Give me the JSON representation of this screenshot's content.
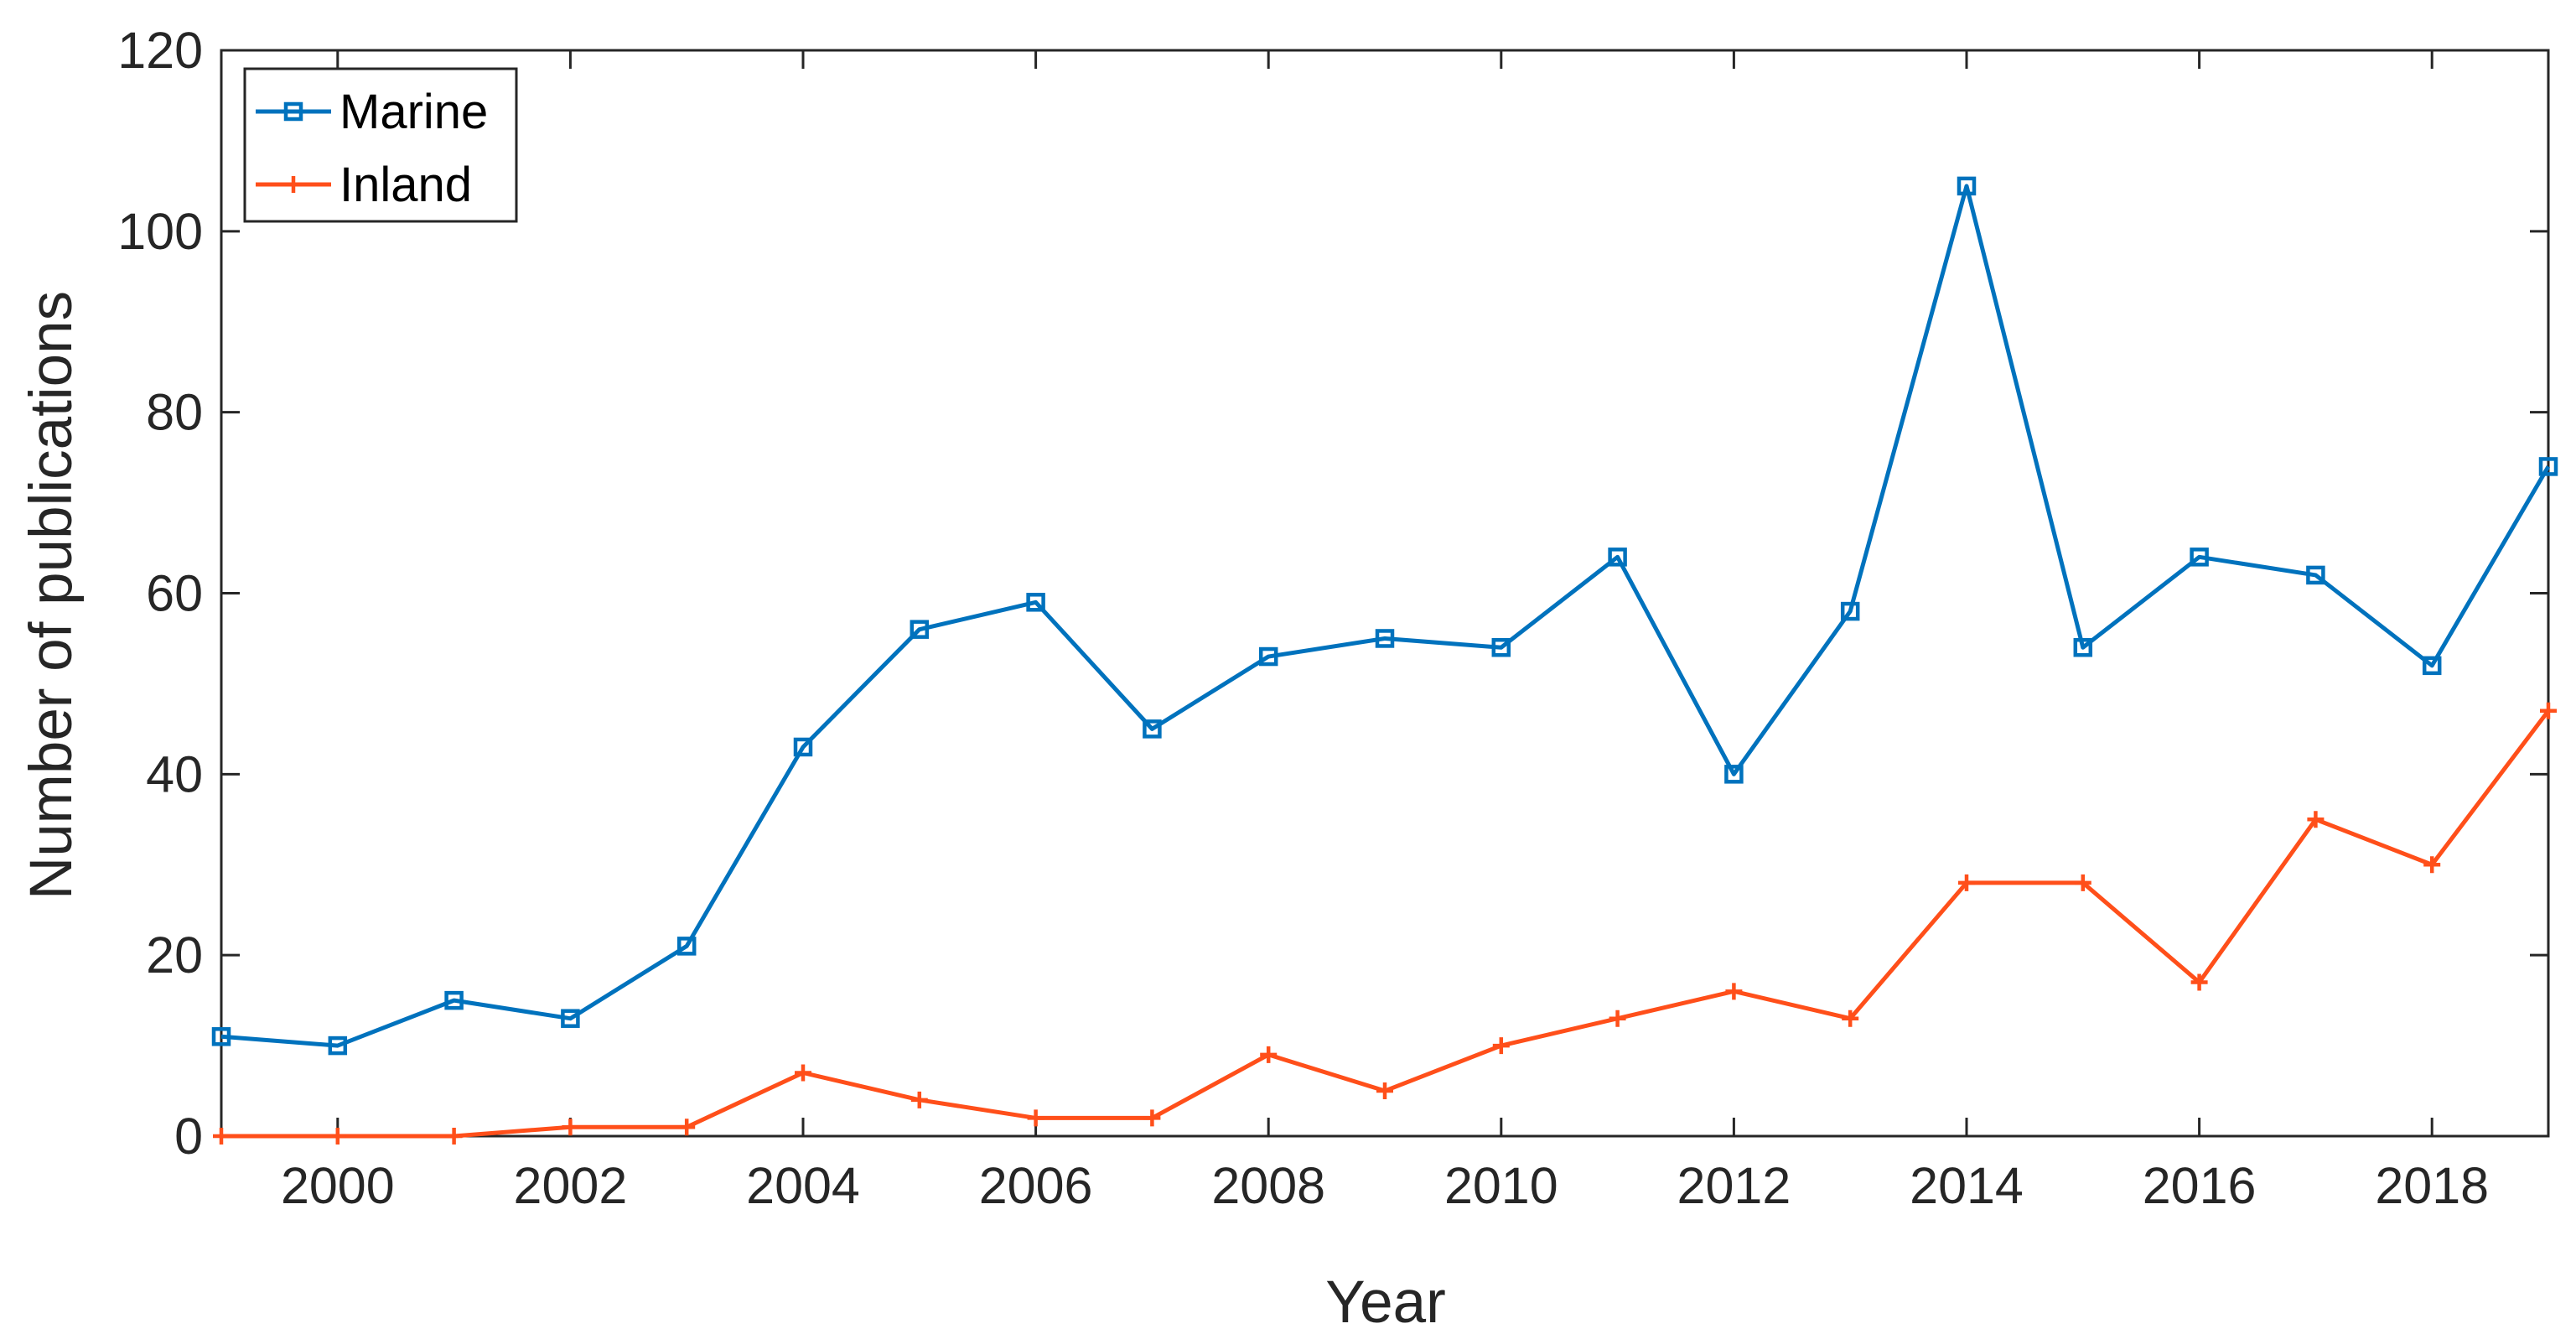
{
  "chart_data": {
    "type": "line",
    "xlabel": "Year",
    "ylabel": "Number of publications",
    "xlim": [
      1999,
      2019
    ],
    "ylim": [
      0,
      120
    ],
    "xticks": [
      2000,
      2002,
      2004,
      2006,
      2008,
      2010,
      2012,
      2014,
      2016,
      2018
    ],
    "yticks": [
      0,
      20,
      40,
      60,
      80,
      100,
      120
    ],
    "grid": false,
    "legend_position": "top-left",
    "x": [
      1999,
      2000,
      2001,
      2002,
      2003,
      2004,
      2005,
      2006,
      2007,
      2008,
      2009,
      2010,
      2011,
      2012,
      2013,
      2014,
      2015,
      2016,
      2017,
      2018,
      2019
    ],
    "series": [
      {
        "name": "Marine",
        "color": "#0072BD",
        "marker": "square",
        "values": [
          11,
          10,
          15,
          13,
          21,
          43,
          56,
          59,
          45,
          53,
          55,
          54,
          64,
          40,
          58,
          105,
          54,
          64,
          62,
          52,
          74
        ]
      },
      {
        "name": "Inland",
        "color": "#FF4F1A",
        "marker": "plus",
        "values": [
          0,
          0,
          0,
          1,
          1,
          7,
          4,
          2,
          2,
          9,
          5,
          10,
          13,
          16,
          13,
          28,
          28,
          17,
          35,
          30,
          47
        ]
      }
    ]
  }
}
